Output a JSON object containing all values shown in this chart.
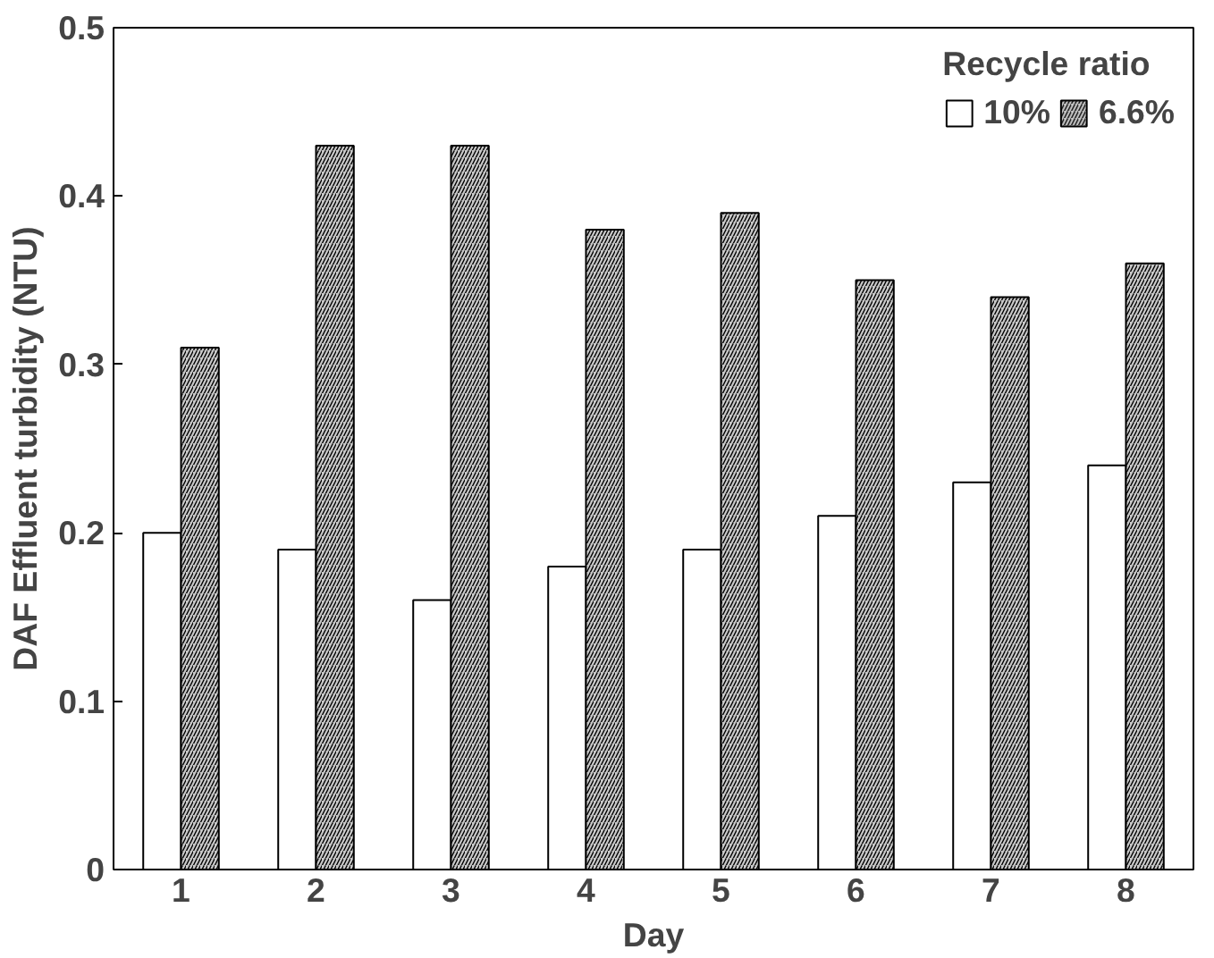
{
  "chart_data": {
    "type": "bar",
    "xlabel": "Day",
    "ylabel": "DAF Effluent turbidity (NTU)",
    "legend_title": "Recycle ratio",
    "categories": [
      "1",
      "2",
      "3",
      "4",
      "5",
      "6",
      "7",
      "8"
    ],
    "series": [
      {
        "name": "10%",
        "color": "#ffffff",
        "values": [
          0.2,
          0.19,
          0.16,
          0.18,
          0.19,
          0.21,
          0.23,
          0.24
        ]
      },
      {
        "name": "6.6%",
        "color": "#c8c8c8",
        "values": [
          0.31,
          0.43,
          0.43,
          0.38,
          0.39,
          0.35,
          0.34,
          0.36
        ]
      }
    ],
    "ylim": [
      0,
      0.5
    ],
    "yticks": [
      0,
      0.1,
      0.2,
      0.3,
      0.4,
      0.5
    ],
    "grid": false,
    "legend": "top right"
  }
}
